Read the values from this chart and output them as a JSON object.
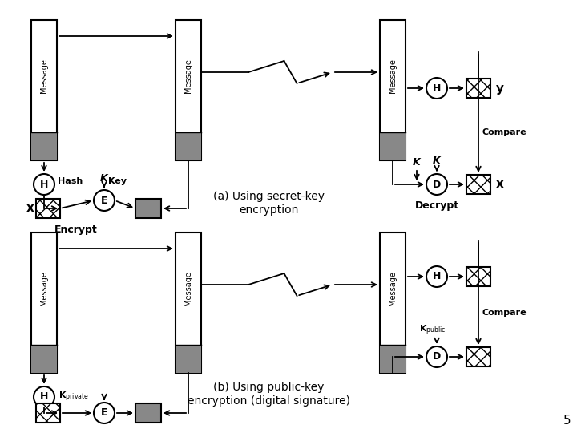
{
  "background_color": "#ffffff",
  "title_number": "5",
  "diagram_a_label1": "(a) Using secret-key",
  "diagram_a_label2": "encryption",
  "diagram_b_label1": "(b) Using public-key",
  "diagram_b_label2": "encryption (digital signature)",
  "encrypt_label": "Encrypt",
  "decrypt_label": "Decrypt",
  "hash_label": "Hash",
  "key_label": "Key",
  "compare_label": "Compare"
}
